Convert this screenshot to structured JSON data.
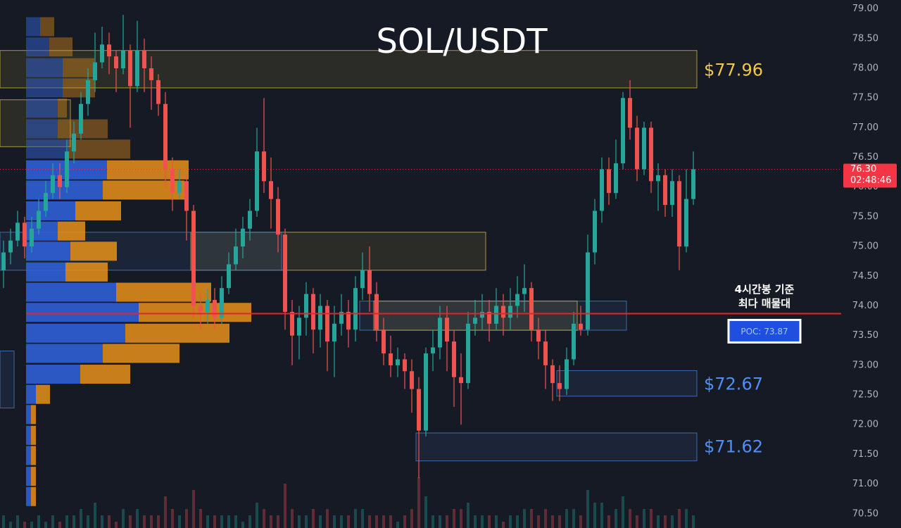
{
  "chart_data": {
    "type": "candlestick",
    "title": "SOL/USDT",
    "ylim": [
      70.26,
      79.15
    ],
    "yticks": [
      {
        "value": 79,
        "label": "79.00"
      },
      {
        "value": 78.5,
        "label": "78.50"
      },
      {
        "value": 78,
        "label": "78.00"
      },
      {
        "value": 77.5,
        "label": "77.50"
      },
      {
        "value": 77,
        "label": "77.00"
      },
      {
        "value": 76.5,
        "label": "76.50"
      },
      {
        "value": 76,
        "label": "76.00"
      },
      {
        "value": 75.5,
        "label": "75.50"
      },
      {
        "value": 75,
        "label": "75.00"
      },
      {
        "value": 74.5,
        "label": "74.50"
      },
      {
        "value": 74,
        "label": "74.00"
      },
      {
        "value": 73.5,
        "label": "73.50"
      },
      {
        "value": 73,
        "label": "73.00"
      },
      {
        "value": 72.5,
        "label": "72.50"
      },
      {
        "value": 72,
        "label": "72.00"
      },
      {
        "value": 71.5,
        "label": "71.50"
      },
      {
        "value": 71,
        "label": "71.00"
      },
      {
        "value": 70.5,
        "label": "70.50"
      }
    ],
    "up_color": "#26a69a",
    "down_color": "#ef5350",
    "open": [
      74.6,
      74.9,
      75.1,
      75.4,
      75.0,
      75.3,
      75.6,
      75.9,
      76.2,
      76.0,
      76.6,
      76.9,
      77.4,
      77.8,
      78.1,
      78.4,
      78.2,
      78.0,
      78.3,
      77.7,
      78.3,
      78.0,
      77.8,
      77.4,
      76.3,
      75.9,
      76.1,
      75.6,
      74.0,
      73.9,
      74.1,
      73.8,
      74.3,
      74.7,
      75.0,
      75.3,
      75.6,
      76.6,
      76.1,
      75.8,
      75.2,
      73.9,
      73.5,
      73.8,
      74.2,
      73.6,
      74.0,
      73.4,
      73.7,
      73.9,
      73.6,
      74.3,
      74.6,
      74.2,
      73.6,
      73.2,
      73.0,
      73.1,
      72.9,
      72.6,
      71.9,
      73.2,
      73.3,
      73.8,
      73.4,
      72.8,
      72.7,
      73.7,
      73.8,
      73.9,
      73.7,
      74.0,
      73.8,
      74.0,
      74.2,
      74.3,
      73.6,
      73.4,
      73.0,
      72.7,
      72.6,
      73.1,
      73.7,
      73.6,
      74.9,
      75.6,
      76.3,
      75.9,
      76.4,
      77.5,
      77.0,
      76.3,
      77.0,
      76.1,
      76.2,
      75.7,
      76.1,
      75.0,
      75.8
    ],
    "high": [
      75.1,
      75.3,
      75.6,
      75.5,
      75.5,
      75.8,
      76.1,
      76.4,
      76.4,
      76.8,
      77.1,
      77.6,
      78.0,
      78.6,
      78.7,
      78.6,
      78.3,
      78.9,
      78.4,
      78.8,
      78.5,
      78.2,
      77.9,
      77.6,
      76.5,
      76.3,
      76.2,
      75.7,
      74.2,
      74.3,
      74.3,
      74.5,
      74.9,
      75.3,
      75.5,
      75.8,
      77.0,
      77.5,
      76.5,
      76.0,
      75.3,
      74.1,
      74.0,
      74.4,
      74.3,
      74.2,
      74.1,
      74.0,
      74.2,
      74.1,
      74.5,
      74.9,
      75.0,
      74.4,
      73.8,
      73.5,
      73.3,
      73.2,
      73.1,
      72.8,
      73.3,
      73.6,
      74.0,
      74.0,
      73.6,
      73.2,
      73.9,
      74.1,
      74.2,
      74.1,
      74.3,
      74.2,
      74.3,
      74.5,
      74.7,
      74.4,
      73.8,
      73.6,
      73.1,
      73.0,
      73.3,
      73.9,
      74.0,
      75.2,
      75.8,
      76.5,
      76.5,
      76.8,
      77.6,
      77.8,
      77.2,
      77.1,
      77.1,
      76.4,
      76.3,
      76.3,
      76.2,
      76.3,
      76.6
    ],
    "low": [
      74.3,
      74.7,
      75.0,
      74.8,
      74.9,
      75.2,
      75.5,
      75.8,
      75.8,
      75.9,
      76.4,
      76.8,
      77.2,
      77.6,
      78.0,
      77.9,
      77.6,
      77.9,
      77.0,
      77.6,
      77.6,
      77.3,
      77.2,
      76.0,
      75.6,
      75.8,
      75.1,
      73.8,
      73.6,
      73.7,
      73.6,
      73.7,
      74.2,
      74.6,
      74.8,
      75.1,
      75.5,
      75.9,
      75.3,
      74.9,
      73.6,
      73.0,
      73.1,
      73.5,
      73.2,
      73.3,
      72.9,
      72.8,
      73.5,
      73.3,
      73.4,
      74.1,
      73.9,
      73.4,
      73.0,
      72.8,
      72.8,
      72.6,
      72.2,
      71.1,
      71.8,
      72.9,
      73.1,
      72.9,
      72.3,
      72.0,
      72.6,
      73.5,
      73.6,
      73.4,
      73.6,
      73.5,
      73.6,
      73.8,
      73.9,
      73.4,
      73.1,
      72.6,
      72.4,
      72.4,
      72.5,
      73.0,
      73.5,
      73.5,
      74.7,
      75.4,
      75.7,
      75.8,
      76.3,
      76.8,
      76.1,
      76.2,
      75.9,
      75.6,
      75.5,
      75.5,
      74.6,
      74.9,
      75.7
    ],
    "close": [
      74.9,
      75.1,
      75.4,
      75.0,
      75.3,
      75.6,
      75.9,
      76.2,
      76.0,
      76.6,
      76.9,
      77.4,
      77.8,
      78.1,
      78.4,
      78.2,
      78.0,
      78.3,
      77.7,
      78.3,
      78.0,
      77.8,
      77.4,
      76.3,
      75.9,
      76.1,
      75.6,
      74.0,
      73.9,
      74.1,
      73.8,
      74.3,
      74.7,
      75.0,
      75.3,
      75.6,
      76.6,
      76.1,
      75.8,
      75.2,
      73.9,
      73.5,
      73.8,
      74.2,
      73.6,
      74.0,
      73.4,
      73.7,
      73.9,
      73.6,
      74.3,
      74.6,
      74.2,
      73.6,
      73.2,
      73.0,
      73.1,
      72.9,
      72.6,
      71.9,
      73.2,
      73.3,
      73.8,
      73.4,
      72.8,
      72.7,
      73.7,
      73.8,
      73.9,
      73.7,
      74.0,
      73.8,
      74.0,
      74.2,
      74.3,
      73.6,
      73.4,
      73.0,
      72.7,
      72.6,
      73.1,
      73.7,
      73.6,
      74.9,
      75.6,
      76.3,
      75.9,
      76.4,
      77.5,
      77.0,
      76.3,
      77.0,
      76.1,
      76.2,
      75.7,
      76.1,
      75.0,
      75.8,
      76.3
    ],
    "volume": [
      2,
      1,
      2,
      1,
      1,
      2,
      1,
      2,
      1,
      2,
      2,
      3,
      2,
      4,
      2,
      2,
      1,
      3,
      2,
      3,
      2,
      2,
      2,
      5,
      3,
      2,
      3,
      6,
      3,
      2,
      2,
      2,
      2,
      2,
      1,
      2,
      4,
      3,
      2,
      2,
      7,
      3,
      2,
      2,
      3,
      2,
      3,
      2,
      2,
      2,
      3,
      3,
      2,
      2,
      2,
      2,
      1,
      2,
      3,
      8,
      5,
      2,
      2,
      2,
      3,
      3,
      4,
      2,
      2,
      2,
      2,
      1,
      2,
      2,
      3,
      3,
      2,
      3,
      2,
      2,
      3,
      3,
      2,
      6,
      4,
      4,
      2,
      3,
      5,
      3,
      2,
      3,
      3,
      2,
      2,
      2,
      3,
      3,
      2
    ],
    "volume_profile": {
      "buy_color": "#2f5fd6",
      "sell_color": "#e8921a",
      "levels": [
        78.7,
        78.36,
        78.01,
        77.67,
        77.33,
        76.98,
        76.64,
        76.29,
        75.95,
        75.6,
        75.26,
        74.92,
        74.57,
        74.23,
        73.89,
        73.54,
        73.2,
        72.85,
        72.51,
        72.17,
        71.82,
        71.48,
        71.13,
        70.79
      ],
      "buy": [
        20,
        33,
        52,
        52,
        45,
        45,
        60,
        115,
        109,
        70,
        45,
        63,
        56,
        128,
        160,
        141,
        109,
        77,
        14,
        7,
        7,
        7,
        7,
        7
      ],
      "sell": [
        20,
        33,
        45,
        46,
        13,
        71,
        88,
        116,
        116,
        65,
        39,
        66,
        60,
        135,
        160,
        148,
        109,
        71,
        20,
        7,
        7,
        7,
        7,
        7
      ]
    },
    "zones": [
      {
        "lo": 77.67,
        "hi": 78.3,
        "from": 0,
        "to": 98,
        "color": "#c9b440",
        "value": 77.96,
        "label": "$77.96"
      },
      {
        "lo": 76.68,
        "hi": 77.47,
        "from": 0,
        "to": 9,
        "color": "#c9b440"
      },
      {
        "lo": 74.6,
        "hi": 75.24,
        "from": 27,
        "to": 68,
        "color": "#c9b440"
      },
      {
        "lo": 74.6,
        "hi": 75.24,
        "from": 0,
        "to": 39,
        "color": "#4a7cc9"
      },
      {
        "lo": 73.59,
        "hi": 74.08,
        "from": 51,
        "to": 88,
        "color": "#4a7cc9"
      },
      {
        "lo": 73.59,
        "hi": 74.08,
        "from": 53,
        "to": 81,
        "color": "#c9b440"
      },
      {
        "lo": 72.28,
        "hi": 73.24,
        "from": 0,
        "to": 1,
        "color": "#4a7cc9"
      },
      {
        "lo": 72.48,
        "hi": 72.91,
        "from": 79,
        "to": 98,
        "color": "#4a7cc9",
        "value": 72.67,
        "label": "$72.67"
      },
      {
        "lo": 71.39,
        "hi": 71.86,
        "from": 59,
        "to": 98,
        "color": "#4a7cc9",
        "value": 71.62,
        "label": "$71.62"
      }
    ],
    "poc": {
      "value": 73.87,
      "label": "POC: 73.87",
      "color": "#e0262b"
    },
    "annotation": [
      "4시간봉 기준",
      "최다 매물대"
    ],
    "last_price": {
      "value": 76.3,
      "label": "76.30",
      "countdown": "02:48:46",
      "color": "#f23645"
    }
  }
}
